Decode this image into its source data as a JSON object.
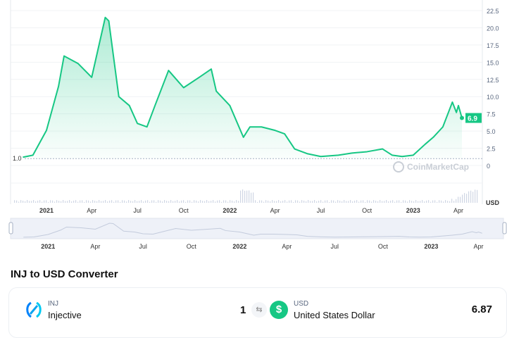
{
  "chart_data": {
    "type": "line",
    "currency_label": "USD",
    "y_ticks": [
      "0",
      "2.5",
      "5.0",
      "7.5",
      "10.0",
      "12.5",
      "15.0",
      "17.5",
      "20.0",
      "22.5"
    ],
    "ylim": [
      0,
      22.5
    ],
    "x_ticks": [
      "2021",
      "Apr",
      "Jul",
      "Oct",
      "2022",
      "Apr",
      "Jul",
      "Oct",
      "2023",
      "Apr"
    ],
    "x_tick_dates": [
      "2021-01-01",
      "2021-04-01",
      "2021-07-01",
      "2021-10-01",
      "2022-01-01",
      "2022-04-01",
      "2022-07-01",
      "2022-10-01",
      "2023-01-01",
      "2023-04-01"
    ],
    "baseline_label": "1.0",
    "baseline_value": 1.0,
    "current_price_label": "6.9",
    "watermark": "CoinMarketCap",
    "line_color": "#16c784",
    "grid": true,
    "series": [
      {
        "x": [
          "2020-11-15",
          "2020-12-05",
          "2021-01-01",
          "2021-01-25",
          "2021-02-05",
          "2021-03-05",
          "2021-04-01",
          "2021-04-28",
          "2021-05-05",
          "2021-05-25",
          "2021-06-15",
          "2021-07-01",
          "2021-07-20",
          "2021-08-05",
          "2021-09-01",
          "2021-10-01",
          "2021-11-01",
          "2021-11-25",
          "2021-12-05",
          "2022-01-01",
          "2022-01-28",
          "2022-02-10",
          "2022-03-05",
          "2022-04-01",
          "2022-04-20",
          "2022-05-10",
          "2022-06-05",
          "2022-07-01",
          "2022-08-05",
          "2022-09-01",
          "2022-10-01",
          "2022-11-01",
          "2022-11-20",
          "2022-12-10",
          "2023-01-01",
          "2023-01-25",
          "2023-02-10",
          "2023-03-01",
          "2023-03-20",
          "2023-03-28",
          "2023-04-01",
          "2023-04-08"
        ],
        "values": [
          1.2,
          1.5,
          5.1,
          11.5,
          15.9,
          14.8,
          12.8,
          21.5,
          21.0,
          10.0,
          8.7,
          6.1,
          5.6,
          8.7,
          13.8,
          11.3,
          12.8,
          14.0,
          10.8,
          8.7,
          4.1,
          5.6,
          5.6,
          5.1,
          4.6,
          2.4,
          1.7,
          1.3,
          1.5,
          1.8,
          2.0,
          2.4,
          1.5,
          1.3,
          1.5,
          3.1,
          4.1,
          5.6,
          9.2,
          7.7,
          8.7,
          6.9
        ]
      }
    ]
  },
  "converter": {
    "title": "INJ to USD Converter",
    "from_code": "INJ",
    "from_name": "Injective",
    "amount": "1",
    "to_code": "USD",
    "to_name": "United States Dollar",
    "result": "6.87",
    "swap_icon": "swap-arrows-icon",
    "usd_icon": "$"
  }
}
